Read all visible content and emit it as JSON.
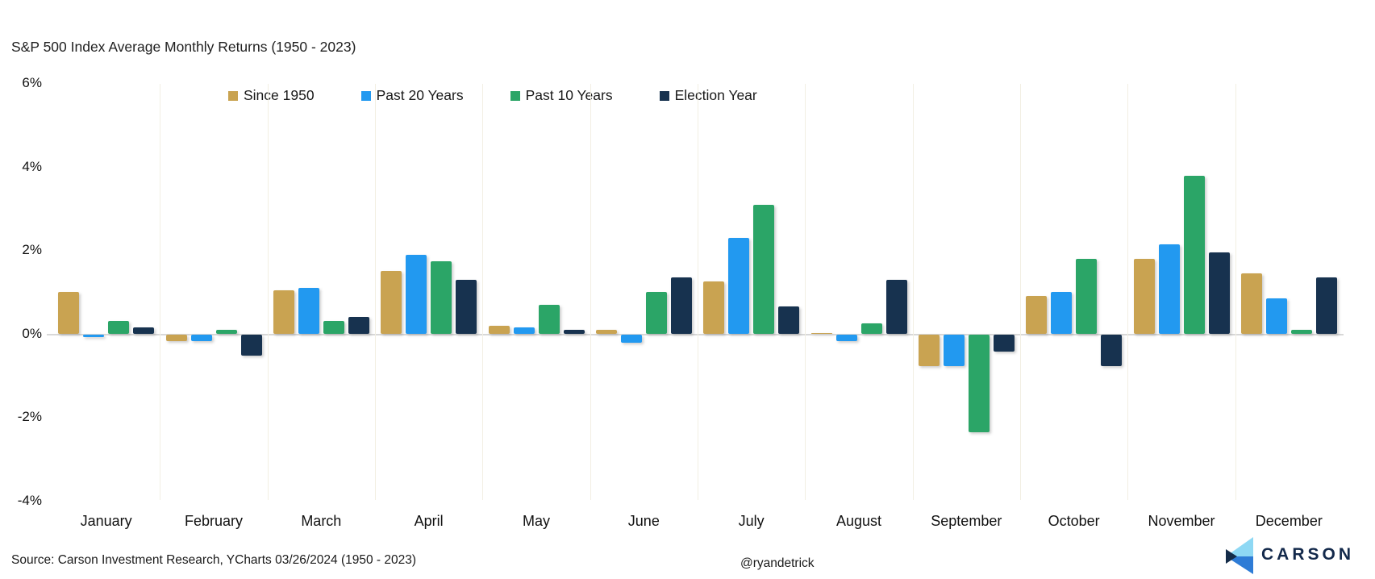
{
  "title": "S&P 500 Index Average Monthly Returns (1950 - 2023)",
  "source_note": "Source: Carson Investment Research, YCharts 03/26/2024 (1950 - 2023)",
  "handle": "@ryandetrick",
  "logo": {
    "text": "CARSON"
  },
  "chart_data": {
    "type": "bar",
    "title": "S&P 500 Index Average Monthly Returns (1950 - 2023)",
    "months": [
      "January",
      "February",
      "March",
      "April",
      "May",
      "June",
      "July",
      "August",
      "September",
      "October",
      "November",
      "December"
    ],
    "series": [
      {
        "name": "Since 1950",
        "color": "#C9A351",
        "values": [
          1.0,
          -0.15,
          1.05,
          1.5,
          0.2,
          0.1,
          1.25,
          0.02,
          -0.75,
          0.9,
          1.8,
          1.45
        ]
      },
      {
        "name": "Past 20 Years",
        "color": "#2299F0",
        "values": [
          -0.05,
          -0.15,
          1.1,
          1.9,
          0.15,
          -0.2,
          2.3,
          -0.15,
          -0.75,
          1.0,
          2.15,
          0.85
        ]
      },
      {
        "name": "Past 10 Years",
        "color": "#2BA567",
        "values": [
          0.3,
          0.1,
          0.3,
          1.75,
          0.7,
          1.0,
          3.1,
          0.25,
          -2.35,
          1.8,
          3.8,
          0.1
        ]
      },
      {
        "name": "Election Year",
        "color": "#17324F",
        "values": [
          0.15,
          -0.5,
          0.4,
          1.3,
          0.1,
          1.35,
          0.65,
          1.3,
          -0.4,
          -0.75,
          1.95,
          1.35
        ]
      }
    ],
    "y_axis": {
      "unit": "%",
      "ticks": [
        "6%",
        "4%",
        "2%",
        "0%",
        "-2%",
        "-4%"
      ],
      "tick_values": [
        6,
        4,
        2,
        0,
        -2,
        -4
      ],
      "range": [
        -4,
        6
      ]
    },
    "legend_position": "top",
    "grid": {
      "zero_line": true,
      "vertical_month_separators": true,
      "horizontal_gridlines": false
    }
  }
}
